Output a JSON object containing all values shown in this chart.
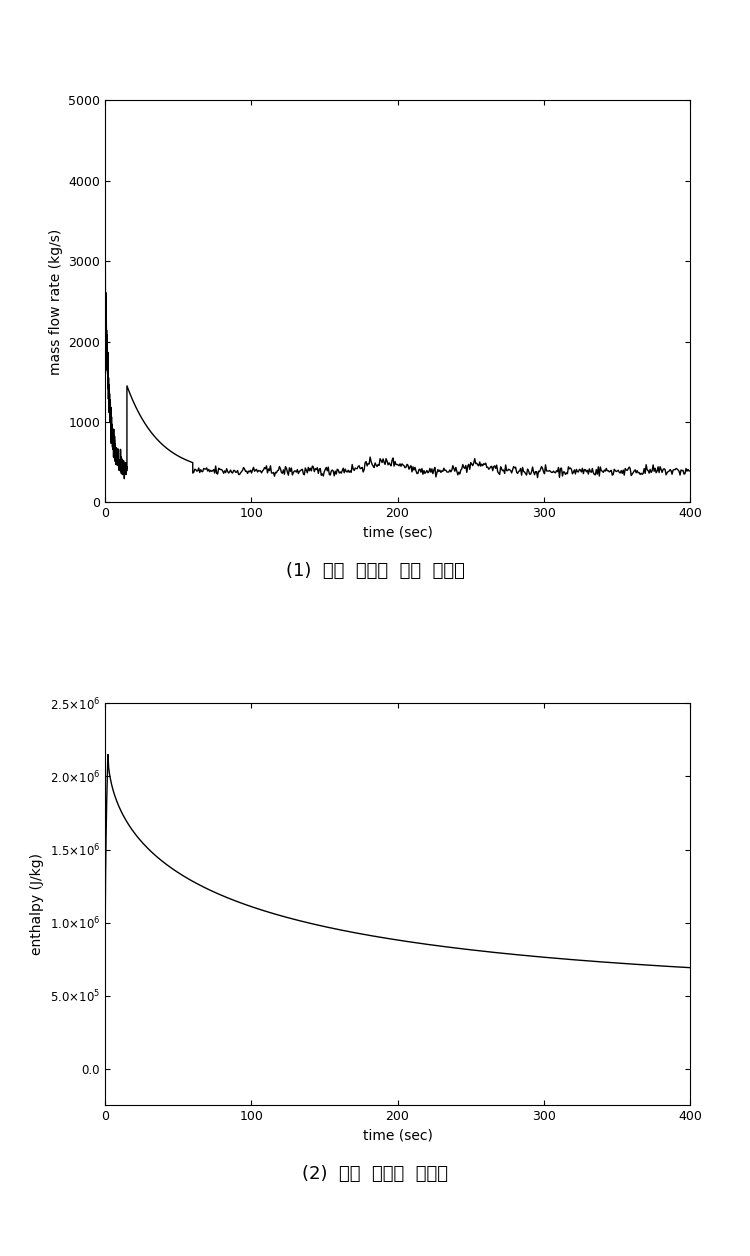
{
  "fig_width": 7.5,
  "fig_height": 12.56,
  "bg_color": "#ffffff",
  "plot1": {
    "xlabel": "time (sec)",
    "ylabel": "mass flow rate (kg/s)",
    "xlim": [
      0,
      400
    ],
    "ylim": [
      0,
      5000
    ],
    "xticks": [
      0,
      100,
      200,
      300,
      400
    ],
    "yticks": [
      0,
      1000,
      2000,
      3000,
      4000,
      5000
    ],
    "caption": "(1)  방출  유량의  질량  방출률"
  },
  "plot2": {
    "xlabel": "time (sec)",
    "ylabel": "enthalpy (J/kg)",
    "xlim": [
      0,
      400
    ],
    "ylim": [
      -250000.0,
      2500000.0
    ],
    "xticks": [
      0,
      100,
      200,
      300,
      400
    ],
    "caption": "(2)  방출  유량의  엔탈피"
  },
  "line_color": "#000000",
  "line_width": 1.0,
  "axes_linewidth": 0.8,
  "tick_fontsize": 9,
  "label_fontsize": 10,
  "caption_fontsize": 13
}
